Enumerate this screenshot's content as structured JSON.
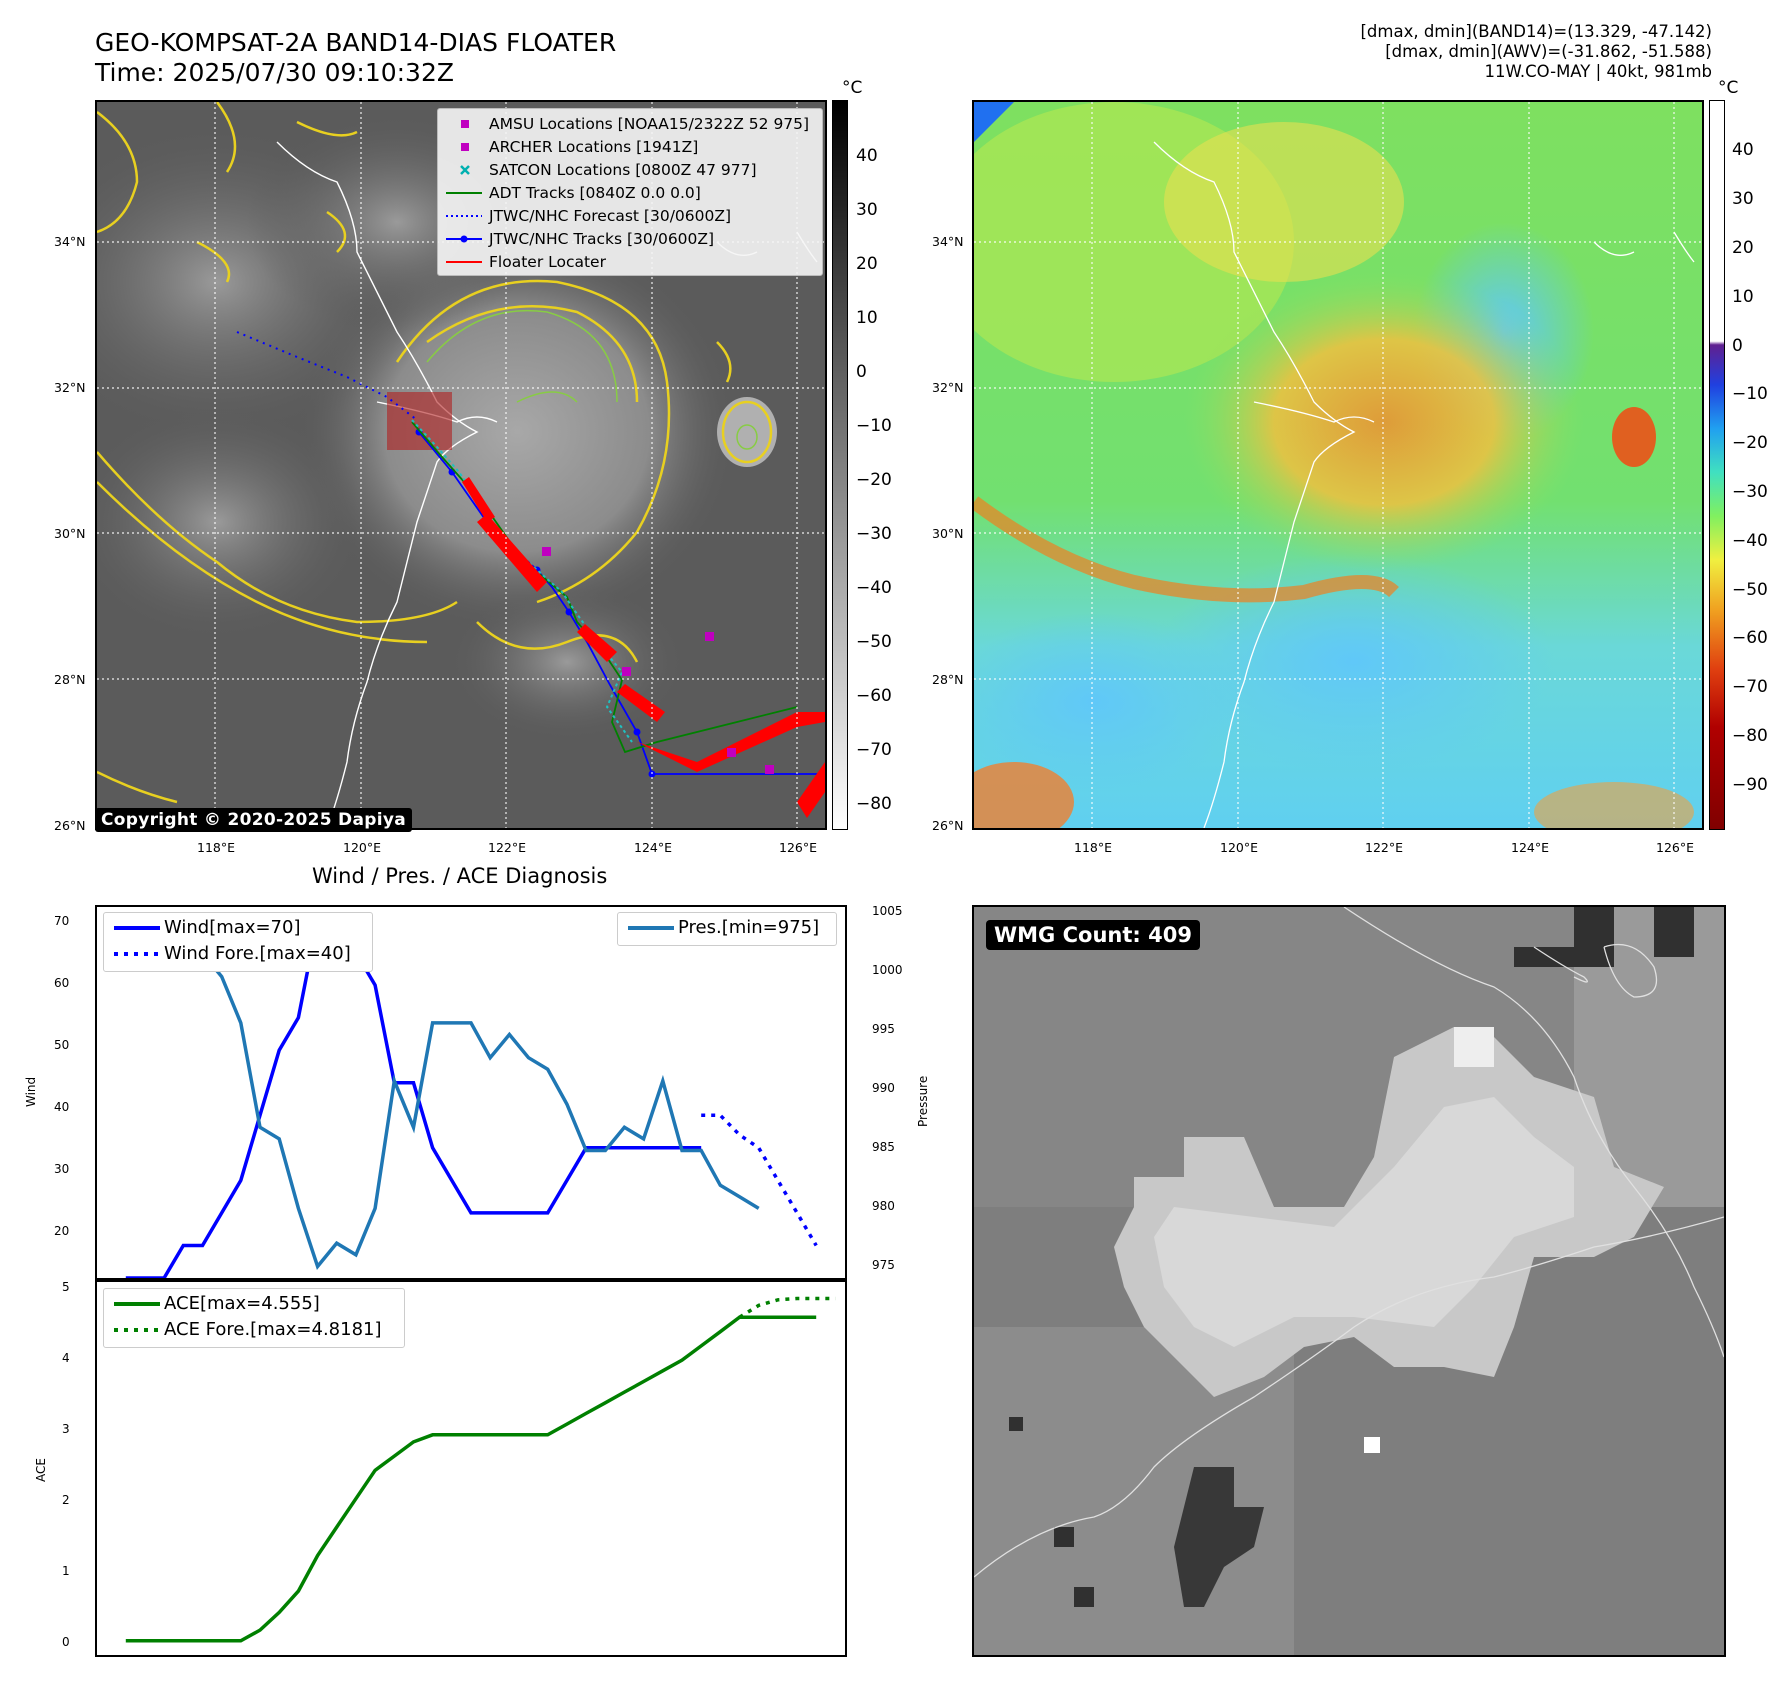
{
  "title": {
    "line1": "GEO-KOMPSAT-2A BAND14-DIAS FLOATER",
    "line2": "Time: 2025/07/30 09:10:32Z"
  },
  "info": {
    "line1": "[dmax, dmin](BAND14)=(13.329, -47.142)",
    "line2": "[dmax, dmin](AWV)=(-31.862, -51.588)",
    "line3": "11W.CO-MAY | 40kt, 981mb"
  },
  "map": {
    "lat_labels": [
      "34°N",
      "32°N",
      "30°N",
      "28°N",
      "26°N"
    ],
    "lon_labels": [
      "118°E",
      "120°E",
      "122°E",
      "124°E",
      "126°E"
    ],
    "legend": [
      {
        "label": "AMSU Locations [NOAA15/2322Z 52 975]",
        "marker": "square",
        "color": "#c000c0"
      },
      {
        "label": "ARCHER Locations [1941Z]",
        "marker": "square",
        "color": "#c000c0"
      },
      {
        "label": "SATCON Locations [0800Z 47 977]",
        "marker": "x",
        "color": "#00b0b0"
      },
      {
        "label": "ADT Tracks [0840Z 0.0 0.0]",
        "marker": "line",
        "color": "#008000"
      },
      {
        "label": "JTWC/NHC Forecast [30/0600Z]",
        "marker": "dotted",
        "color": "#0000ff"
      },
      {
        "label": "JTWC/NHC Tracks [30/0600Z]",
        "marker": "line-dot",
        "color": "#0000ff"
      },
      {
        "label": "Floater Locater",
        "marker": "line",
        "color": "#ff0000"
      }
    ],
    "copyright": "Copyright © 2020-2025 Dapiya"
  },
  "colorbar_left": {
    "unit": "°C",
    "ticks": [
      "40",
      "30",
      "20",
      "10",
      "0",
      "−10",
      "−20",
      "−30",
      "−40",
      "−50",
      "−60",
      "−70",
      "−80"
    ]
  },
  "colorbar_right": {
    "unit": "°C",
    "ticks": [
      "40",
      "30",
      "20",
      "10",
      "0",
      "−10",
      "−20",
      "−30",
      "−40",
      "−50",
      "−60",
      "−70",
      "−80",
      "−90"
    ]
  },
  "wmg": {
    "label": "WMG Count: 409"
  },
  "diagnosis": {
    "title": "Wind / Pres. / ACE Diagnosis",
    "wind_ylabel": "Wind",
    "pres_ylabel": "Pressure",
    "ace_ylabel": "ACE",
    "legend_wind": "Wind[max=70]",
    "legend_wind_fore": "Wind Fore.[max=40]",
    "legend_pres": "Pres.[min=975]",
    "legend_ace": "ACE[max=4.555]",
    "legend_ace_fore": "ACE Fore.[max=4.8181]",
    "wind_ticks": [
      "70",
      "60",
      "50",
      "40",
      "30",
      "20"
    ],
    "pres_ticks": [
      "1005",
      "1000",
      "995",
      "990",
      "985",
      "980",
      "975"
    ],
    "ace_ticks": [
      "5",
      "4",
      "3",
      "2",
      "1",
      "0"
    ]
  },
  "chart_data": [
    {
      "type": "line",
      "title": "Wind / Pres. / ACE Diagnosis",
      "ylabel": "Wind",
      "ylim": [
        15,
        72
      ],
      "y2label": "Pressure",
      "y2lim": [
        974,
        1006
      ],
      "x": [
        0,
        1,
        2,
        3,
        4,
        5,
        6,
        7,
        8,
        9,
        10,
        11,
        12,
        13,
        14,
        15,
        16,
        17,
        18,
        19,
        20,
        21,
        22,
        23,
        24,
        25,
        26,
        27,
        28,
        29,
        30,
        31,
        32,
        33,
        34,
        35
      ],
      "series": [
        {
          "name": "Wind[max=70]",
          "color": "#0000ff",
          "style": "solid",
          "x": [
            0,
            1,
            2,
            3,
            4,
            5,
            6,
            7,
            8,
            9,
            10,
            11,
            12,
            13,
            14,
            15,
            16,
            17,
            18,
            19,
            20,
            21,
            22,
            23,
            24,
            25,
            26,
            27,
            28,
            29,
            30
          ],
          "values": [
            15,
            15,
            15,
            20,
            20,
            25,
            30,
            40,
            50,
            55,
            70,
            65,
            65,
            60,
            45,
            45,
            35,
            30,
            25,
            25,
            25,
            25,
            25,
            30,
            35,
            35,
            35,
            35,
            35,
            35,
            35
          ]
        },
        {
          "name": "Wind Fore.[max=40]",
          "color": "#0000ff",
          "style": "dotted",
          "x": [
            30,
            31,
            32,
            33,
            34,
            35,
            36
          ],
          "values": [
            40,
            40,
            37,
            35,
            30,
            25,
            20
          ]
        },
        {
          "name": "Pres.[min=975]",
          "color": "#1f77b4",
          "style": "solid",
          "axis": "y2",
          "x": [
            0,
            1,
            2,
            3,
            4,
            5,
            6,
            7,
            8,
            9,
            10,
            11,
            12,
            13,
            14,
            15,
            16,
            17,
            18,
            19,
            20,
            21,
            22,
            23,
            24,
            25,
            26,
            27,
            28,
            29,
            30,
            31,
            32,
            33
          ],
          "values": [
            1005,
            1005,
            1005,
            1005,
            1002,
            1000,
            996,
            987,
            986,
            980,
            975,
            977,
            976,
            980,
            991,
            987,
            996,
            996,
            996,
            993,
            995,
            993,
            992,
            989,
            985,
            985,
            987,
            986,
            991,
            985,
            985,
            982,
            981,
            980
          ]
        },
        {
          "name": "ACE[max=4.555]",
          "color": "#008000",
          "style": "solid",
          "panel": "ace",
          "x": [
            0,
            1,
            2,
            3,
            4,
            5,
            6,
            7,
            8,
            9,
            10,
            11,
            12,
            13,
            14,
            15,
            16,
            17,
            18,
            19,
            20,
            21,
            22,
            23,
            24,
            25,
            26,
            27,
            28,
            29,
            30,
            31,
            32,
            33,
            34,
            35,
            36
          ],
          "values": [
            0,
            0,
            0,
            0,
            0,
            0,
            0,
            0.15,
            0.4,
            0.7,
            1.2,
            1.6,
            2.0,
            2.4,
            2.6,
            2.8,
            2.9,
            2.9,
            2.9,
            2.9,
            2.9,
            2.9,
            2.9,
            3.05,
            3.2,
            3.35,
            3.5,
            3.65,
            3.8,
            3.95,
            4.15,
            4.35,
            4.555,
            4.555,
            4.555,
            4.555,
            4.555
          ]
        },
        {
          "name": "ACE Fore.[max=4.8181]",
          "color": "#008000",
          "style": "dotted",
          "panel": "ace",
          "x": [
            32,
            33,
            34,
            35,
            36,
            37
          ],
          "values": [
            4.555,
            4.72,
            4.8,
            4.8181,
            4.8181,
            4.8181
          ]
        }
      ]
    }
  ]
}
